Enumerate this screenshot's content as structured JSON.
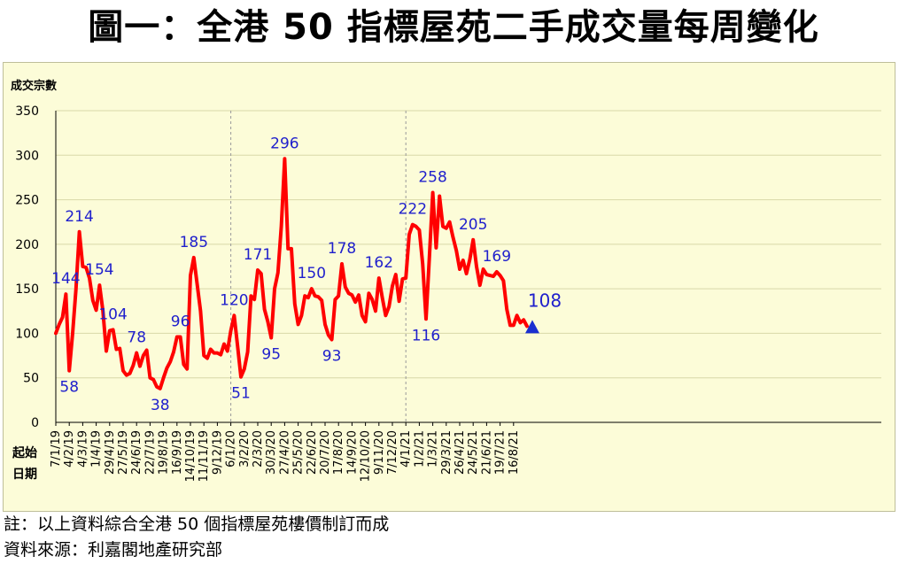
{
  "title": "圖一：全港 50 指標屋苑二手成交量每周變化",
  "notes": {
    "note": "註：以上資料綜合全港 50 個指標屋苑樓價制訂而成",
    "source": "資料來源：利嘉閣地產研究部"
  },
  "colors": {
    "line": "#ff0000",
    "label": "#1f1fcc",
    "marker": "#1a2fd0",
    "background": "#fcfcd8",
    "divider": "#999999"
  },
  "chart_data": {
    "type": "line",
    "ylabel": "成交宗數",
    "xlabel": "起始日期",
    "ylim": [
      0,
      350
    ],
    "yticks": [
      0,
      50,
      100,
      150,
      200,
      250,
      300,
      350
    ],
    "grid": true,
    "xtick_labels": [
      "7/1/19",
      "4/2/19",
      "4/3/19",
      "1/4/19",
      "29/4/19",
      "27/5/19",
      "24/6/19",
      "22/7/19",
      "19/8/19",
      "16/9/19",
      "14/10/19",
      "11/11/19",
      "9/12/19",
      "6/1/20",
      "3/2/20",
      "2/3/20",
      "30/3/20",
      "27/4/20",
      "25/5/20",
      "22/6/20",
      "20/7/20",
      "17/8/20",
      "14/9/20",
      "12/10/20",
      "9/11/20",
      "7/12/20",
      "4/1/21",
      "1/2/21",
      "1/3/21",
      "29/3/21",
      "26/4/21",
      "24/5/21",
      "21/6/21",
      "19/7/21",
      "16/8/21"
    ],
    "values": [
      100,
      110,
      118,
      144,
      58,
      100,
      150,
      214,
      175,
      174,
      162,
      137,
      126,
      154,
      125,
      80,
      103,
      104,
      82,
      83,
      58,
      53,
      55,
      64,
      78,
      63,
      75,
      81,
      50,
      48,
      40,
      38,
      50,
      61,
      68,
      79,
      96,
      96,
      65,
      60,
      165,
      185,
      155,
      125,
      75,
      72,
      82,
      78,
      78,
      76,
      88,
      80,
      103,
      120,
      86,
      51,
      60,
      79,
      142,
      138,
      171,
      167,
      127,
      113,
      95,
      150,
      168,
      220,
      296,
      195,
      195,
      133,
      110,
      120,
      142,
      140,
      150,
      142,
      141,
      137,
      110,
      98,
      93,
      138,
      142,
      178,
      152,
      145,
      143,
      135,
      143,
      120,
      113,
      145,
      138,
      125,
      162,
      140,
      120,
      130,
      153,
      166,
      136,
      161,
      162,
      211,
      222,
      220,
      216,
      178,
      116,
      186,
      258,
      196,
      254,
      220,
      218,
      225,
      208,
      193,
      172,
      182,
      167,
      183,
      205,
      175,
      154,
      172,
      166,
      165,
      164,
      169,
      165,
      159,
      127,
      109,
      109,
      120,
      112,
      115,
      108
    ],
    "point_labels": [
      {
        "index": 3,
        "text": "144",
        "pos": "above"
      },
      {
        "index": 4,
        "text": "58",
        "pos": "below"
      },
      {
        "index": 7,
        "text": "214",
        "pos": "above"
      },
      {
        "index": 13,
        "text": "154",
        "pos": "above"
      },
      {
        "index": 17,
        "text": "104",
        "pos": "above"
      },
      {
        "index": 24,
        "text": "78",
        "pos": "above"
      },
      {
        "index": 31,
        "text": "38",
        "pos": "below"
      },
      {
        "index": 37,
        "text": "96",
        "pos": "above"
      },
      {
        "index": 41,
        "text": "185",
        "pos": "above"
      },
      {
        "index": 53,
        "text": "120",
        "pos": "above"
      },
      {
        "index": 55,
        "text": "51",
        "pos": "below"
      },
      {
        "index": 60,
        "text": "171",
        "pos": "above"
      },
      {
        "index": 64,
        "text": "95",
        "pos": "below"
      },
      {
        "index": 68,
        "text": "296",
        "pos": "above"
      },
      {
        "index": 76,
        "text": "150",
        "pos": "above"
      },
      {
        "index": 82,
        "text": "93",
        "pos": "below"
      },
      {
        "index": 85,
        "text": "178",
        "pos": "above"
      },
      {
        "index": 96,
        "text": "162",
        "pos": "above"
      },
      {
        "index": 106,
        "text": "222",
        "pos": "above"
      },
      {
        "index": 110,
        "text": "116",
        "pos": "below"
      },
      {
        "index": 112,
        "text": "258",
        "pos": "above"
      },
      {
        "index": 124,
        "text": "205",
        "pos": "above"
      },
      {
        "index": 131,
        "text": "169",
        "pos": "above"
      },
      {
        "index": 140,
        "text": "108",
        "pos": "above-right"
      }
    ],
    "year_dividers_after_tick": [
      "6/1/20",
      "4/1/21"
    ],
    "end_marker": "triangle"
  }
}
